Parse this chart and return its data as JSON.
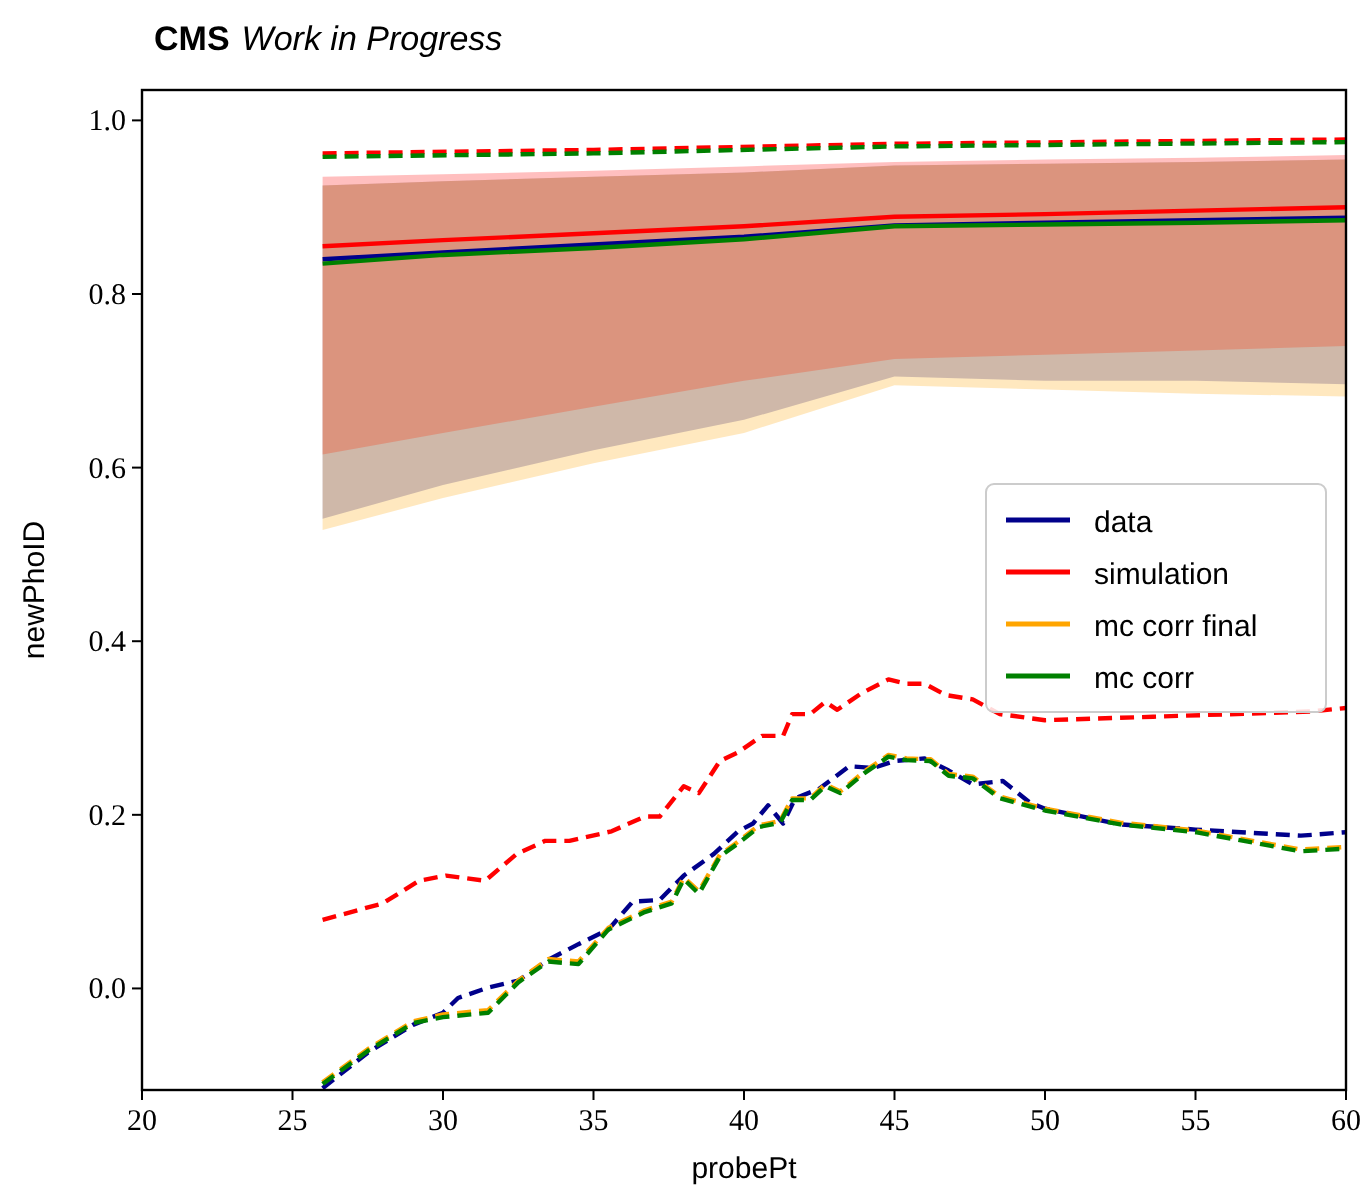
{
  "chart_data": {
    "type": "line",
    "title": "CMS",
    "subtitle": "Work in Progress",
    "xlabel": "probePt",
    "ylabel": "newPhoID",
    "xlim": [
      20,
      60
    ],
    "xticks": [
      20,
      25,
      30,
      35,
      40,
      45,
      50,
      55,
      60
    ],
    "ylim": [
      -0.117,
      1.035
    ],
    "yticks": [
      {
        "value": 0,
        "label": "0.0"
      },
      {
        "value": 0.2,
        "label": "0.2"
      },
      {
        "value": 0.4,
        "label": "0.4"
      },
      {
        "value": 0.6,
        "label": "0.6"
      },
      {
        "value": 0.8,
        "label": "0.8"
      },
      {
        "value": 1,
        "label": "1.0"
      }
    ],
    "legend": "right",
    "grid": false,
    "series": [
      {
        "name": "data",
        "color": "#00008b",
        "line_style": "solid",
        "x": [
          26,
          30,
          35,
          40,
          45,
          50,
          55,
          60
        ],
        "values": [
          0.84,
          0.848,
          0.857,
          0.866,
          0.879,
          0.882,
          0.885,
          0.888
        ],
        "lower": [
          0.541,
          0.58,
          0.62,
          0.655,
          0.705,
          0.7,
          0.7,
          0.696
        ],
        "upper": [
          0.925,
          0.93,
          0.935,
          0.94,
          0.948,
          0.95,
          0.952,
          0.955
        ]
      },
      {
        "name": "simulation",
        "color": "#ff0000",
        "line_style": "solid",
        "x": [
          26,
          30,
          35,
          40,
          45,
          50,
          55,
          60
        ],
        "values": [
          0.855,
          0.862,
          0.87,
          0.878,
          0.889,
          0.892,
          0.896,
          0.9
        ],
        "lower": [
          0.615,
          0.64,
          0.67,
          0.7,
          0.725,
          0.73,
          0.735,
          0.74
        ],
        "upper": [
          0.935,
          0.938,
          0.942,
          0.947,
          0.952,
          0.955,
          0.957,
          0.96
        ]
      },
      {
        "name": "mc corr final",
        "color": "#ffa500",
        "line_style": "solid",
        "x": [
          26,
          30,
          35,
          40,
          45,
          50,
          55,
          60
        ],
        "values": [
          null,
          null,
          null,
          null,
          null,
          null,
          null,
          null
        ],
        "lower": [
          0.528,
          0.565,
          0.605,
          0.64,
          0.695,
          0.69,
          0.685,
          0.682
        ],
        "upper": [
          0.925,
          0.93,
          0.935,
          0.94,
          0.948,
          0.95,
          0.952,
          0.955
        ]
      },
      {
        "name": "mc corr",
        "color": "#008000",
        "line_style": "solid",
        "x": [
          26,
          30,
          35,
          40,
          45,
          50,
          55,
          60
        ],
        "values": [
          0.835,
          0.845,
          0.853,
          0.863,
          0.878,
          0.88,
          0.882,
          0.885
        ]
      },
      {
        "color": "#ff0000",
        "line_style": "dashed",
        "x": [
          26,
          35,
          45,
          60
        ],
        "values": [
          0.962,
          0.966,
          0.973,
          0.978
        ]
      },
      {
        "color": "#008000",
        "line_style": "dashed",
        "x": [
          26,
          35,
          45,
          60
        ],
        "values": [
          0.958,
          0.962,
          0.97,
          0.975
        ]
      },
      {
        "color": "#00008b",
        "line_style": "dashed",
        "x": [
          26,
          27.5,
          29,
          30,
          30.5,
          31.5,
          32.5,
          33.5,
          34.5,
          35.5,
          36.3,
          37.2,
          38,
          39,
          39.8,
          40.3,
          40.8,
          41.3,
          41.7,
          42.5,
          43.5,
          44.3,
          45,
          46,
          46.8,
          47.6,
          48.6,
          49.5,
          50,
          52.5,
          55,
          58.5,
          60
        ],
        "values": [
          -0.115,
          -0.074,
          -0.042,
          -0.028,
          -0.011,
          0.001,
          0.009,
          0.033,
          0.051,
          0.068,
          0.1,
          0.102,
          0.13,
          0.155,
          0.181,
          0.19,
          0.211,
          0.19,
          0.219,
          0.23,
          0.256,
          0.254,
          0.262,
          0.265,
          0.251,
          0.235,
          0.239,
          0.214,
          0.207,
          0.189,
          0.183,
          0.176,
          0.18
        ]
      },
      {
        "color": "#ff0000",
        "line_style": "dashed",
        "x": [
          26,
          28,
          29.2,
          30.1,
          31.4,
          32.45,
          33.4,
          34.2,
          35.6,
          36.7,
          37.2,
          38,
          38.5,
          39.2,
          39.8,
          40.6,
          41.3,
          41.6,
          42.2,
          42.7,
          43.1,
          43.9,
          44.8,
          45.4,
          46,
          46.7,
          47.6,
          48.5,
          50,
          53.6,
          58.8,
          60
        ],
        "values": [
          0.079,
          0.098,
          0.124,
          0.13,
          0.124,
          0.155,
          0.17,
          0.17,
          0.181,
          0.198,
          0.198,
          0.233,
          0.225,
          0.262,
          0.272,
          0.291,
          0.291,
          0.316,
          0.316,
          0.33,
          0.321,
          0.34,
          0.356,
          0.351,
          0.351,
          0.338,
          0.333,
          0.316,
          0.309,
          0.313,
          0.319,
          0.323
        ]
      },
      {
        "color": "#ffa500",
        "line_style": "dashed",
        "x": [
          26,
          27.5,
          29,
          30,
          31.5,
          32.5,
          33.5,
          34.5,
          35.5,
          36.7,
          37.6,
          38,
          38.5,
          39.2,
          39.8,
          40.5,
          41.2,
          41.6,
          42.2,
          42.7,
          43.2,
          44,
          44.8,
          45.4,
          46.2,
          46.8,
          47.6,
          48.5,
          50,
          52.5,
          55,
          58.5,
          60
        ],
        "values": [
          -0.108,
          -0.07,
          -0.038,
          -0.03,
          -0.025,
          0.009,
          0.034,
          0.031,
          0.07,
          0.09,
          0.1,
          0.128,
          0.112,
          0.154,
          0.169,
          0.188,
          0.193,
          0.219,
          0.219,
          0.235,
          0.227,
          0.25,
          0.269,
          0.265,
          0.264,
          0.247,
          0.244,
          0.221,
          0.207,
          0.191,
          0.182,
          0.16,
          0.163
        ]
      },
      {
        "color": "#008000",
        "line_style": "dashed",
        "x": [
          26,
          27.5,
          29,
          30,
          31.5,
          32.5,
          33.5,
          34.5,
          35.5,
          36.7,
          37.6,
          38,
          38.5,
          39.2,
          39.8,
          40.5,
          41.2,
          41.6,
          42.2,
          42.7,
          43.2,
          44,
          44.8,
          45.4,
          46.2,
          46.8,
          47.6,
          48.5,
          50,
          52.5,
          55,
          58.5,
          60
        ],
        "values": [
          -0.11,
          -0.072,
          -0.04,
          -0.033,
          -0.028,
          0.007,
          0.031,
          0.028,
          0.068,
          0.088,
          0.098,
          0.126,
          0.109,
          0.152,
          0.167,
          0.186,
          0.191,
          0.217,
          0.217,
          0.233,
          0.225,
          0.248,
          0.267,
          0.263,
          0.262,
          0.245,
          0.242,
          0.219,
          0.205,
          0.189,
          0.18,
          0.158,
          0.161
        ]
      }
    ]
  }
}
